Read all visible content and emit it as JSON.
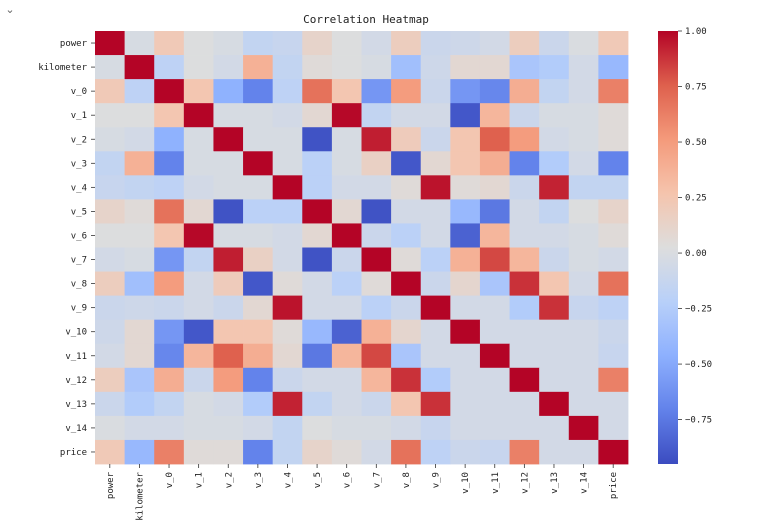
{
  "ui": {
    "collapse_icon": "chevron-down-icon",
    "collapse_glyph": "⌄"
  },
  "chart_data": {
    "type": "heatmap",
    "title": "Correlation Heatmap",
    "xlabel": "",
    "ylabel": "",
    "labels": [
      "power",
      "kilometer",
      "v_0",
      "v_1",
      "v_2",
      "v_3",
      "v_4",
      "v_5",
      "v_6",
      "v_7",
      "v_8",
      "v_9",
      "v_10",
      "v_11",
      "v_12",
      "v_13",
      "v_14",
      "price"
    ],
    "colormap": "coolwarm",
    "vmin": -0.95,
    "vmax": 1.0,
    "colorbar_ticks": [
      1.0,
      0.75,
      0.5,
      0.25,
      0.0,
      -0.25,
      -0.5,
      -0.75
    ],
    "colorbar_tick_labels": [
      "1.00",
      "0.75",
      "0.50",
      "0.25",
      "0.00",
      "−0.25",
      "−0.50",
      "−0.75"
    ],
    "values": [
      [
        1.0,
        -0.02,
        0.22,
        0.02,
        -0.02,
        -0.15,
        -0.12,
        0.12,
        0.02,
        -0.05,
        0.18,
        -0.1,
        -0.08,
        -0.05,
        0.18,
        -0.1,
        0.0,
        0.22
      ],
      [
        -0.02,
        1.0,
        -0.18,
        0.02,
        -0.05,
        0.38,
        -0.15,
        0.05,
        0.02,
        -0.02,
        -0.35,
        -0.08,
        0.08,
        0.08,
        -0.3,
        -0.25,
        -0.05,
        -0.4
      ],
      [
        0.22,
        -0.18,
        1.0,
        0.25,
        -0.45,
        -0.7,
        -0.18,
        0.68,
        0.25,
        -0.6,
        0.5,
        -0.1,
        -0.6,
        -0.68,
        0.4,
        -0.15,
        -0.05,
        0.62
      ],
      [
        0.02,
        0.02,
        0.25,
        1.0,
        -0.02,
        -0.02,
        -0.05,
        0.08,
        0.99,
        -0.15,
        -0.05,
        -0.05,
        -0.9,
        0.35,
        -0.1,
        -0.02,
        -0.02,
        0.05
      ],
      [
        -0.02,
        -0.05,
        -0.45,
        -0.02,
        1.0,
        -0.02,
        -0.02,
        -0.92,
        -0.02,
        0.93,
        0.2,
        -0.1,
        0.25,
        0.75,
        0.5,
        -0.05,
        -0.02,
        0.05
      ],
      [
        -0.15,
        0.38,
        -0.7,
        -0.02,
        -0.02,
        1.0,
        -0.02,
        -0.2,
        -0.02,
        0.15,
        -0.9,
        0.08,
        0.25,
        0.4,
        -0.7,
        -0.25,
        -0.05,
        -0.7
      ],
      [
        -0.12,
        -0.15,
        -0.18,
        -0.05,
        -0.02,
        -0.02,
        1.0,
        -0.2,
        -0.05,
        -0.05,
        0.05,
        0.96,
        0.05,
        0.08,
        -0.1,
        0.92,
        -0.15,
        -0.15
      ],
      [
        0.12,
        0.05,
        0.68,
        0.08,
        -0.92,
        -0.2,
        -0.2,
        1.0,
        0.08,
        -0.92,
        -0.05,
        -0.05,
        -0.4,
        -0.75,
        -0.05,
        -0.15,
        0.02,
        0.12
      ],
      [
        0.02,
        0.02,
        0.25,
        0.99,
        -0.02,
        -0.02,
        -0.05,
        0.08,
        1.0,
        -0.1,
        -0.2,
        -0.05,
        -0.85,
        0.35,
        -0.05,
        -0.05,
        -0.02,
        0.05
      ],
      [
        -0.05,
        -0.02,
        -0.6,
        -0.15,
        0.93,
        0.15,
        -0.05,
        -0.92,
        -0.1,
        1.0,
        0.05,
        -0.2,
        0.38,
        0.82,
        0.35,
        -0.1,
        -0.02,
        -0.05
      ],
      [
        0.18,
        -0.35,
        0.5,
        -0.05,
        0.2,
        -0.9,
        0.05,
        -0.05,
        -0.2,
        0.05,
        1.0,
        -0.1,
        0.1,
        -0.3,
        0.88,
        0.25,
        -0.05,
        0.68
      ],
      [
        -0.1,
        -0.08,
        -0.1,
        -0.05,
        -0.1,
        0.08,
        0.96,
        -0.05,
        -0.05,
        -0.2,
        -0.1,
        1.0,
        -0.05,
        -0.05,
        -0.25,
        0.88,
        -0.12,
        -0.18
      ],
      [
        -0.08,
        0.08,
        -0.6,
        -0.9,
        0.25,
        0.25,
        0.05,
        -0.4,
        -0.85,
        0.38,
        0.1,
        -0.05,
        1.0,
        -0.05,
        -0.05,
        -0.05,
        -0.05,
        -0.1
      ],
      [
        -0.05,
        0.08,
        -0.68,
        0.35,
        0.75,
        0.4,
        0.08,
        -0.75,
        0.35,
        0.82,
        -0.3,
        -0.05,
        -0.05,
        1.0,
        -0.05,
        -0.05,
        -0.05,
        -0.12
      ],
      [
        0.18,
        -0.3,
        0.4,
        -0.1,
        0.5,
        -0.7,
        -0.1,
        -0.05,
        -0.05,
        0.35,
        0.88,
        -0.25,
        -0.05,
        -0.05,
        1.0,
        -0.05,
        -0.05,
        0.62
      ],
      [
        -0.1,
        -0.25,
        -0.15,
        -0.02,
        -0.05,
        -0.25,
        0.92,
        -0.15,
        -0.05,
        -0.1,
        0.25,
        0.88,
        -0.05,
        -0.05,
        -0.05,
        1.0,
        -0.05,
        -0.05
      ],
      [
        0.0,
        -0.05,
        -0.05,
        -0.02,
        -0.02,
        -0.05,
        -0.15,
        0.02,
        -0.02,
        -0.02,
        -0.05,
        -0.12,
        -0.05,
        -0.05,
        -0.05,
        -0.05,
        1.0,
        -0.05
      ],
      [
        0.22,
        -0.4,
        0.62,
        0.05,
        0.05,
        -0.7,
        -0.15,
        0.12,
        0.05,
        -0.05,
        0.68,
        -0.18,
        -0.1,
        -0.12,
        0.62,
        -0.05,
        -0.05,
        1.0
      ]
    ]
  }
}
